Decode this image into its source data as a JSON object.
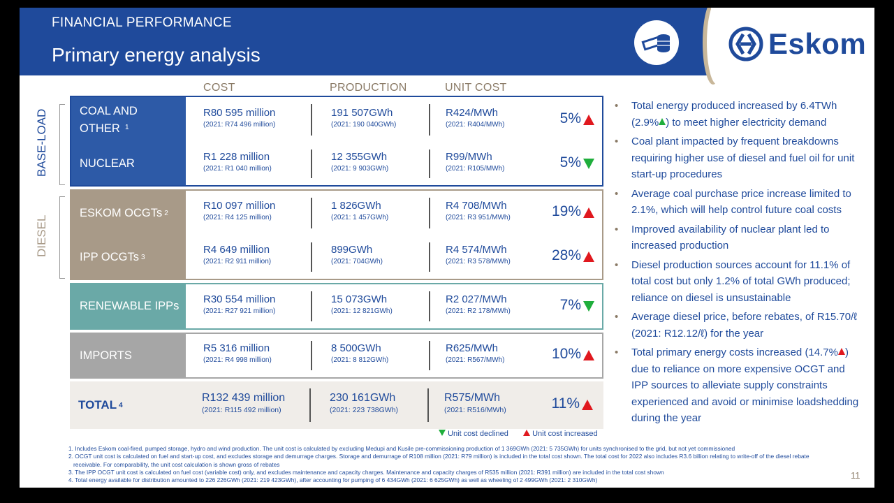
{
  "header": {
    "subtitle": "FINANCIAL PERFORMANCE",
    "title": "Primary energy analysis",
    "logo_text": "Eskom"
  },
  "columns": {
    "cost": "COST",
    "production": "PRODUCTION",
    "unit_cost": "UNIT COST"
  },
  "side_labels": {
    "base_load": "BASE-LOAD",
    "diesel": "DIESEL"
  },
  "rows": [
    {
      "category": "COAL AND OTHER",
      "note": "1",
      "cost": "R80 595 million",
      "cost_prev": "(2021: R74 496 million)",
      "production": "191 507GWh",
      "production_prev": "(2021: 190 040GWh)",
      "unit_cost": "R424/MWh",
      "unit_cost_prev": "(2021: R404/MWh)",
      "change": "5%",
      "direction": "up"
    },
    {
      "category": "NUCLEAR",
      "note": "",
      "cost": "R1 228 million",
      "cost_prev": "(2021: R1 040 million)",
      "production": "12 355GWh",
      "production_prev": "(2021: 9 903GWh)",
      "unit_cost": "R99/MWh",
      "unit_cost_prev": "(2021: R105/MWh)",
      "change": "5%",
      "direction": "down"
    },
    {
      "category": "ESKOM OCGTs",
      "note": "2",
      "cost": "R10 097 million",
      "cost_prev": "(2021: R4 125 million)",
      "production": "1 826GWh",
      "production_prev": "(2021: 1 457GWh)",
      "unit_cost": "R4 708/MWh",
      "unit_cost_prev": "(2021: R3 951/MWh)",
      "change": "19%",
      "direction": "up"
    },
    {
      "category": "IPP OCGTs",
      "note": "3",
      "cost": "R4 649 million",
      "cost_prev": "(2021: R2 911 million)",
      "production": "899GWh",
      "production_prev": "(2021: 704GWh)",
      "unit_cost": "R4 574/MWh",
      "unit_cost_prev": "(2021: R3 578/MWh)",
      "change": "28%",
      "direction": "up"
    },
    {
      "category": "RENEWABLE IPPs",
      "note": "",
      "cost": "R30 554 million",
      "cost_prev": "(2021: R27 921 million)",
      "production": "15 073GWh",
      "production_prev": "(2021: 12 821GWh)",
      "unit_cost": "R2 027/MWh",
      "unit_cost_prev": "(2021: R2 178/MWh)",
      "change": "7%",
      "direction": "down"
    },
    {
      "category": "IMPORTS",
      "note": "",
      "cost": "R5 316 million",
      "cost_prev": "(2021: R4 998 million)",
      "production": "8 500GWh",
      "production_prev": "(2021: 8 812GWh)",
      "unit_cost": "R625/MWh",
      "unit_cost_prev": "(2021: R567/MWh)",
      "change": "10%",
      "direction": "up"
    },
    {
      "category": "TOTAL",
      "note": "4",
      "cost": "R132 439 million",
      "cost_prev": "(2021: R115 492 million)",
      "production": "230 161GWh",
      "production_prev": "(2021: 223 738GWh)",
      "unit_cost": "R575/MWh",
      "unit_cost_prev": "(2021: R516/MWh)",
      "change": "11%",
      "direction": "up"
    }
  ],
  "legend": {
    "declined": "Unit cost declined",
    "increased": "Unit cost increased"
  },
  "bullets": [
    {
      "pre": "Total energy produced increased by 6.4TWh (2.9%",
      "icon": "up-green",
      "post": ") to meet higher electricity demand"
    },
    {
      "pre": "Coal plant impacted by frequent breakdowns requiring higher use of diesel and fuel oil for unit start-up procedures",
      "icon": "",
      "post": ""
    },
    {
      "pre": "Average coal purchase price increase limited to 2.1%, which will help control future coal costs",
      "icon": "",
      "post": ""
    },
    {
      "pre": "Improved availability of nuclear plant led to increased production",
      "icon": "",
      "post": ""
    },
    {
      "pre": "Diesel production sources account for 11.1% of total cost but only 1.2% of total GWh produced; reliance on diesel is unsustainable",
      "icon": "",
      "post": ""
    },
    {
      "pre": "Average diesel price, before rebates, of R15.70/ℓ (2021: R12.12/ℓ) for the year",
      "icon": "",
      "post": ""
    },
    {
      "pre": "Total primary energy costs increased (14.7%",
      "icon": "up-red",
      "post": ") due to reliance on more expensive OCGT and IPP sources to alleviate supply constraints experienced and avoid or minimise loadshedding during the year"
    }
  ],
  "footnotes": [
    "1. Includes Eskom coal-fired, pumped storage, hydro and wind production. The unit cost is calculated by excluding Medupi and Kusile pre-commissioning production of 1 369GWh (2021: 5 735GWh) for units synchronised to the grid, but not yet commissioned",
    "2. OCGT unit cost is calculated on fuel and start-up cost, and excludes storage and demurrage charges. Storage and demurrage of R108 million (2021: R79 million) is included in the total cost shown. The total cost for 2022 also includes R3.6 billion relating to write-off of the diesel rebate receivable. For comparability, the unit cost calculation is shown gross of rebates",
    "3. The IPP OCGT unit cost is calculated on fuel cost (variable cost) only, and excludes maintenance and capacity charges. Maintenance and capacity charges of R535 million (2021: R391 million) are included in the total cost shown",
    "4. Total energy available for distribution amounted to 226 226GWh (2021: 219 423GWh), after accounting for pumping of 6 434GWh (2021: 6 625GWh) as well as wheeling of 2 499GWh (2021: 2 310GWh)"
  ],
  "page_number": "11",
  "colors": {
    "brand_blue": "#1f4a9b",
    "diesel_taupe": "#a89a88",
    "renewable_teal": "#6aa9a7",
    "imports_grey": "#a6a6a6",
    "total_bg": "#f0ede9",
    "up_red": "#e0181e",
    "down_green": "#1fae3c"
  }
}
